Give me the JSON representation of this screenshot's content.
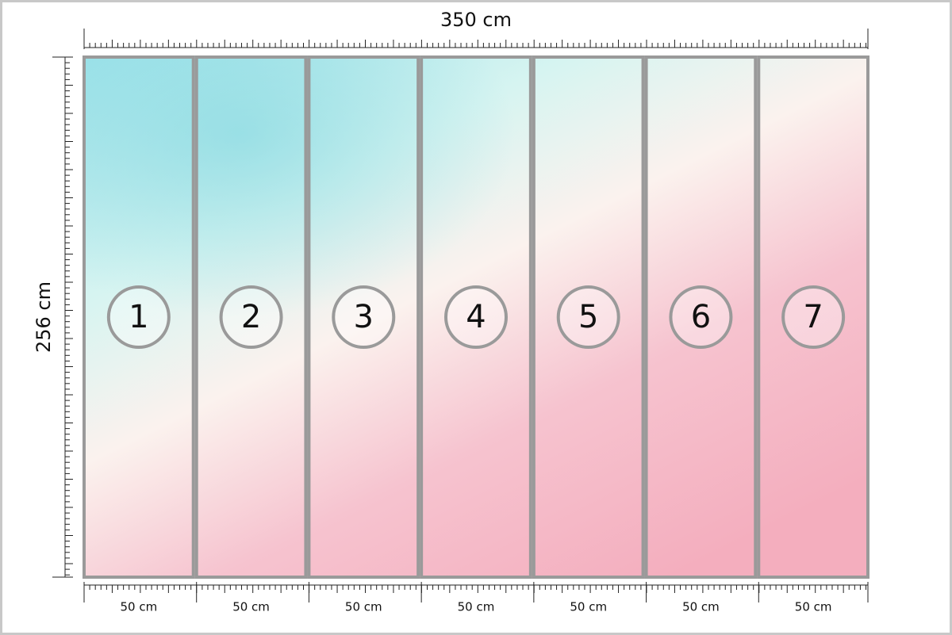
{
  "width_label": "350 cm",
  "height_label": "256 cm",
  "panels": [
    {
      "number": "1",
      "width_label": "50 cm"
    },
    {
      "number": "2",
      "width_label": "50 cm"
    },
    {
      "number": "3",
      "width_label": "50 cm"
    },
    {
      "number": "4",
      "width_label": "50 cm"
    },
    {
      "number": "5",
      "width_label": "50 cm"
    },
    {
      "number": "6",
      "width_label": "50 cm"
    },
    {
      "number": "7",
      "width_label": "50 cm"
    }
  ]
}
